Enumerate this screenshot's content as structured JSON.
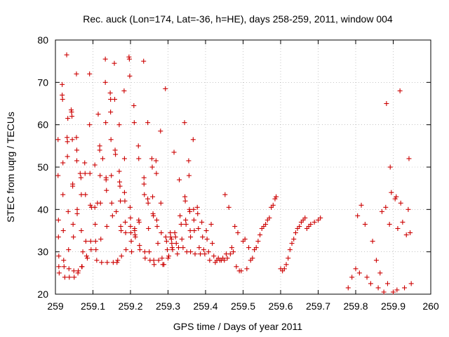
{
  "chart_data": {
    "type": "scatter",
    "title": "Rec. auck (Lon=174, Lat=-36, h=HE), days 258-259, 2011, window 004",
    "xlabel": "GPS time / Days of year 2011",
    "ylabel": "STEC from uqrg / TECUs",
    "xlim": [
      259,
      260
    ],
    "ylim": [
      20,
      80
    ],
    "xticks": [
      "259",
      "259.1",
      "259.2",
      "259.3",
      "259.4",
      "259.5",
      "259.6",
      "259.7",
      "259.8",
      "259.9",
      "260"
    ],
    "yticks": [
      "20",
      "30",
      "40",
      "50",
      "60",
      "70",
      "80"
    ],
    "grid": true,
    "marker": "+",
    "color": "#cc0000",
    "points": [
      [
        259.007,
        56.5
      ],
      [
        259.007,
        48
      ],
      [
        259.008,
        37.5
      ],
      [
        259.008,
        33.5
      ],
      [
        259.009,
        29
      ],
      [
        259.009,
        26.5
      ],
      [
        259.01,
        25
      ],
      [
        259.018,
        69.5
      ],
      [
        259.018,
        67
      ],
      [
        259.019,
        66
      ],
      [
        259.02,
        51
      ],
      [
        259.02,
        43.5
      ],
      [
        259.021,
        35
      ],
      [
        259.022,
        28
      ],
      [
        259.023,
        26.5
      ],
      [
        259.025,
        24
      ],
      [
        259.03,
        76.5
      ],
      [
        259.031,
        57
      ],
      [
        259.032,
        56
      ],
      [
        259.032,
        52.5
      ],
      [
        259.033,
        61.5
      ],
      [
        259.034,
        39.5
      ],
      [
        259.035,
        30.5
      ],
      [
        259.036,
        26
      ],
      [
        259.037,
        24
      ],
      [
        259.042,
        63.5
      ],
      [
        259.043,
        63
      ],
      [
        259.044,
        62
      ],
      [
        259.045,
        56.5
      ],
      [
        259.046,
        46
      ],
      [
        259.046,
        45.5
      ],
      [
        259.047,
        36.5
      ],
      [
        259.048,
        33.5
      ],
      [
        259.049,
        25.5
      ],
      [
        259.05,
        24
      ],
      [
        259.056,
        72
      ],
      [
        259.056,
        57
      ],
      [
        259.057,
        54
      ],
      [
        259.057,
        51.5
      ],
      [
        259.058,
        40
      ],
      [
        259.058,
        39
      ],
      [
        259.06,
        25
      ],
      [
        259.061,
        25.5
      ],
      [
        259.066,
        48.5
      ],
      [
        259.068,
        47.5
      ],
      [
        259.069,
        43.5
      ],
      [
        259.069,
        35
      ],
      [
        259.07,
        26.5
      ],
      [
        259.071,
        26.5
      ],
      [
        259.073,
        30
      ],
      [
        259.078,
        51
      ],
      [
        259.079,
        48.5
      ],
      [
        259.08,
        43.5
      ],
      [
        259.081,
        32.5
      ],
      [
        259.083,
        29
      ],
      [
        259.085,
        28.5
      ],
      [
        259.091,
        72
      ],
      [
        259.091,
        60
      ],
      [
        259.092,
        48.5
      ],
      [
        259.093,
        41
      ],
      [
        259.094,
        32.5
      ],
      [
        259.095,
        30.5
      ],
      [
        259.096,
        40.5
      ],
      [
        259.105,
        50.5
      ],
      [
        259.105,
        40.5
      ],
      [
        259.106,
        36.5
      ],
      [
        259.107,
        32.5
      ],
      [
        259.108,
        30.5
      ],
      [
        259.11,
        28
      ],
      [
        259.112,
        41.5
      ],
      [
        259.114,
        62.5
      ],
      [
        259.118,
        55
      ],
      [
        259.118,
        54
      ],
      [
        259.119,
        48
      ],
      [
        259.12,
        41.5
      ],
      [
        259.121,
        33
      ],
      [
        259.123,
        27.5
      ],
      [
        259.126,
        52
      ],
      [
        259.133,
        75.5
      ],
      [
        259.133,
        70
      ],
      [
        259.134,
        60.5
      ],
      [
        259.135,
        47.5
      ],
      [
        259.135,
        47
      ],
      [
        259.136,
        44.5
      ],
      [
        259.137,
        36
      ],
      [
        259.138,
        27.5
      ],
      [
        259.146,
        67.5
      ],
      [
        259.147,
        66
      ],
      [
        259.147,
        63
      ],
      [
        259.148,
        56.5
      ],
      [
        259.149,
        48
      ],
      [
        259.15,
        41.5
      ],
      [
        259.152,
        38.5
      ],
      [
        259.154,
        27.5
      ],
      [
        259.157,
        74.5
      ],
      [
        259.158,
        66
      ],
      [
        259.159,
        54
      ],
      [
        259.16,
        53
      ],
      [
        259.162,
        39.5
      ],
      [
        259.164,
        27.5
      ],
      [
        259.166,
        28
      ],
      [
        259.17,
        60
      ],
      [
        259.17,
        49
      ],
      [
        259.171,
        46.5
      ],
      [
        259.172,
        45.5
      ],
      [
        259.173,
        42
      ],
      [
        259.174,
        36
      ],
      [
        259.175,
        35
      ],
      [
        259.176,
        29
      ],
      [
        259.183,
        68
      ],
      [
        259.184,
        52
      ],
      [
        259.184,
        44
      ],
      [
        259.185,
        42
      ],
      [
        259.186,
        37
      ],
      [
        259.187,
        34.5
      ],
      [
        259.188,
        30.5
      ],
      [
        259.196,
        76
      ],
      [
        259.197,
        75.5
      ],
      [
        259.198,
        71.5
      ],
      [
        259.199,
        40.5
      ],
      [
        259.2,
        38
      ],
      [
        259.2,
        36
      ],
      [
        259.201,
        34.5
      ],
      [
        259.202,
        32.5
      ],
      [
        259.203,
        30
      ],
      [
        259.209,
        64.5
      ],
      [
        259.21,
        60.5
      ],
      [
        259.211,
        35.5
      ],
      [
        259.211,
        35
      ],
      [
        259.212,
        34
      ],
      [
        259.213,
        33.5
      ],
      [
        259.221,
        55
      ],
      [
        259.222,
        52
      ],
      [
        259.222,
        37.5
      ],
      [
        259.223,
        37
      ],
      [
        259.224,
        31.5
      ],
      [
        259.225,
        30.5
      ],
      [
        259.235,
        75
      ],
      [
        259.236,
        47.5
      ],
      [
        259.236,
        46
      ],
      [
        259.237,
        43.5
      ],
      [
        259.238,
        30
      ],
      [
        259.239,
        28.5
      ],
      [
        259.246,
        60.5
      ],
      [
        259.246,
        42.5
      ],
      [
        259.247,
        41.5
      ],
      [
        259.248,
        35.5
      ],
      [
        259.25,
        30
      ],
      [
        259.252,
        28
      ],
      [
        259.257,
        52
      ],
      [
        259.258,
        50
      ],
      [
        259.259,
        43
      ],
      [
        259.26,
        39
      ],
      [
        259.261,
        38.5
      ],
      [
        259.262,
        28
      ],
      [
        259.263,
        27
      ],
      [
        259.268,
        51.5
      ],
      [
        259.269,
        48.5
      ],
      [
        259.27,
        37.5
      ],
      [
        259.271,
        36
      ],
      [
        259.273,
        32
      ],
      [
        259.275,
        28
      ],
      [
        259.28,
        58.5
      ],
      [
        259.281,
        41.5
      ],
      [
        259.282,
        34.5
      ],
      [
        259.284,
        28.5
      ],
      [
        259.286,
        27
      ],
      [
        259.289,
        27
      ],
      [
        259.293,
        68.5
      ],
      [
        259.294,
        33.5
      ],
      [
        259.296,
        32.5
      ],
      [
        259.298,
        30.5
      ],
      [
        259.3,
        28.5
      ],
      [
        259.302,
        29
      ],
      [
        259.306,
        34.5
      ],
      [
        259.307,
        33.5
      ],
      [
        259.309,
        33
      ],
      [
        259.31,
        32
      ],
      [
        259.311,
        31
      ],
      [
        259.312,
        30.5
      ],
      [
        259.316,
        53.5
      ],
      [
        259.318,
        34.5
      ],
      [
        259.32,
        33.5
      ],
      [
        259.322,
        32
      ],
      [
        259.325,
        29.5
      ],
      [
        259.328,
        31
      ],
      [
        259.33,
        47
      ],
      [
        259.332,
        38.5
      ],
      [
        259.335,
        36.5
      ],
      [
        259.337,
        33
      ],
      [
        259.34,
        31
      ],
      [
        259.344,
        60.5
      ],
      [
        259.345,
        43
      ],
      [
        259.346,
        42
      ],
      [
        259.347,
        37.5
      ],
      [
        259.348,
        36.5
      ],
      [
        259.35,
        30
      ],
      [
        259.355,
        51.5
      ],
      [
        259.356,
        48
      ],
      [
        259.357,
        40
      ],
      [
        259.358,
        39.5
      ],
      [
        259.359,
        35
      ],
      [
        259.36,
        33.5
      ],
      [
        259.36,
        30
      ],
      [
        259.367,
        56.5
      ],
      [
        259.368,
        40
      ],
      [
        259.369,
        37.5
      ],
      [
        259.37,
        35
      ],
      [
        259.372,
        29.5
      ],
      [
        259.378,
        40.5
      ],
      [
        259.379,
        39
      ],
      [
        259.381,
        35.5
      ],
      [
        259.383,
        31
      ],
      [
        259.386,
        29.5
      ],
      [
        259.39,
        37
      ],
      [
        259.392,
        33.5
      ],
      [
        259.395,
        30.5
      ],
      [
        259.398,
        29.5
      ],
      [
        259.402,
        35
      ],
      [
        259.404,
        33
      ],
      [
        259.408,
        30
      ],
      [
        259.411,
        28
      ],
      [
        259.415,
        36.5
      ],
      [
        259.418,
        32
      ],
      [
        259.422,
        29
      ],
      [
        259.426,
        27.5
      ],
      [
        259.43,
        28
      ],
      [
        259.434,
        28.5
      ],
      [
        259.438,
        28
      ],
      [
        259.442,
        28
      ],
      [
        259.446,
        28.5
      ],
      [
        259.45,
        28
      ],
      [
        259.452,
        43.5
      ],
      [
        259.455,
        29.5
      ],
      [
        259.458,
        28.5
      ],
      [
        259.462,
        40.5
      ],
      [
        259.466,
        29.5
      ],
      [
        259.47,
        31
      ],
      [
        259.474,
        30
      ],
      [
        259.478,
        36
      ],
      [
        259.482,
        26.5
      ],
      [
        259.486,
        34.5
      ],
      [
        259.49,
        25.5
      ],
      [
        259.495,
        25.5
      ],
      [
        259.5,
        32.5
      ],
      [
        259.505,
        33
      ],
      [
        259.51,
        26
      ],
      [
        259.515,
        31
      ],
      [
        259.52,
        28
      ],
      [
        259.525,
        28.5
      ],
      [
        259.53,
        30.5
      ],
      [
        259.535,
        31
      ],
      [
        259.54,
        32.5
      ],
      [
        259.545,
        34
      ],
      [
        259.55,
        35.5
      ],
      [
        259.555,
        36
      ],
      [
        259.56,
        36.5
      ],
      [
        259.565,
        37.5
      ],
      [
        259.57,
        38
      ],
      [
        259.575,
        40.5
      ],
      [
        259.58,
        41
      ],
      [
        259.585,
        42.5
      ],
      [
        259.588,
        43
      ],
      [
        259.6,
        26
      ],
      [
        259.605,
        25.5
      ],
      [
        259.61,
        26
      ],
      [
        259.615,
        27
      ],
      [
        259.62,
        28.5
      ],
      [
        259.625,
        30.5
      ],
      [
        259.63,
        32
      ],
      [
        259.635,
        33
      ],
      [
        259.64,
        34.5
      ],
      [
        259.645,
        35.5
      ],
      [
        259.65,
        36
      ],
      [
        259.655,
        37
      ],
      [
        259.66,
        37.5
      ],
      [
        259.665,
        38
      ],
      [
        259.67,
        35.5
      ],
      [
        259.675,
        36
      ],
      [
        259.68,
        36.5
      ],
      [
        259.69,
        37
      ],
      [
        259.7,
        37.5
      ],
      [
        259.706,
        38
      ],
      [
        259.78,
        21.5
      ],
      [
        259.79,
        24
      ],
      [
        259.8,
        26
      ],
      [
        259.805,
        38.5
      ],
      [
        259.81,
        25
      ],
      [
        259.815,
        41
      ],
      [
        259.825,
        36.5
      ],
      [
        259.83,
        24
      ],
      [
        259.84,
        22.5
      ],
      [
        259.845,
        32.5
      ],
      [
        259.855,
        28
      ],
      [
        259.86,
        21.5
      ],
      [
        259.865,
        25
      ],
      [
        259.87,
        39.5
      ],
      [
        259.875,
        20.5
      ],
      [
        259.88,
        40.5
      ],
      [
        259.882,
        65
      ],
      [
        259.885,
        22.5
      ],
      [
        259.89,
        36.5
      ],
      [
        259.892,
        50
      ],
      [
        259.895,
        44
      ],
      [
        259.9,
        20.5
      ],
      [
        259.905,
        42.5
      ],
      [
        259.908,
        43
      ],
      [
        259.91,
        21
      ],
      [
        259.912,
        35.5
      ],
      [
        259.918,
        68
      ],
      [
        259.92,
        41.5
      ],
      [
        259.925,
        37
      ],
      [
        259.93,
        21.5
      ],
      [
        259.935,
        34
      ],
      [
        259.94,
        40
      ],
      [
        259.942,
        52
      ],
      [
        259.945,
        34.5
      ],
      [
        259.948,
        22.5
      ]
    ]
  }
}
